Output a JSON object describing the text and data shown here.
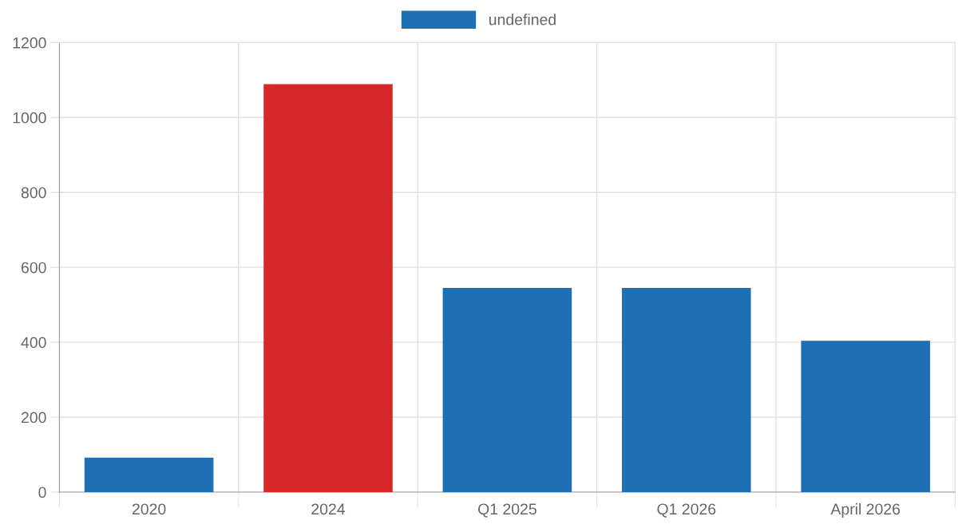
{
  "chart_data": {
    "type": "bar",
    "categories": [
      "2020",
      "2024",
      "Q1 2025",
      "Q1 2026",
      "April 2026"
    ],
    "series": [
      {
        "name": "undefined",
        "color": "#1f6fb4",
        "colors": [
          "#1f6fb4",
          "#d62828",
          "#1f6fb4",
          "#1f6fb4",
          "#1f6fb4"
        ],
        "values": [
          92,
          1089,
          545,
          545,
          404
        ]
      }
    ],
    "ylim": [
      0,
      1200
    ],
    "yticks": [
      0,
      200,
      400,
      600,
      800,
      1000,
      1200
    ],
    "grid": true,
    "legend": "top"
  }
}
